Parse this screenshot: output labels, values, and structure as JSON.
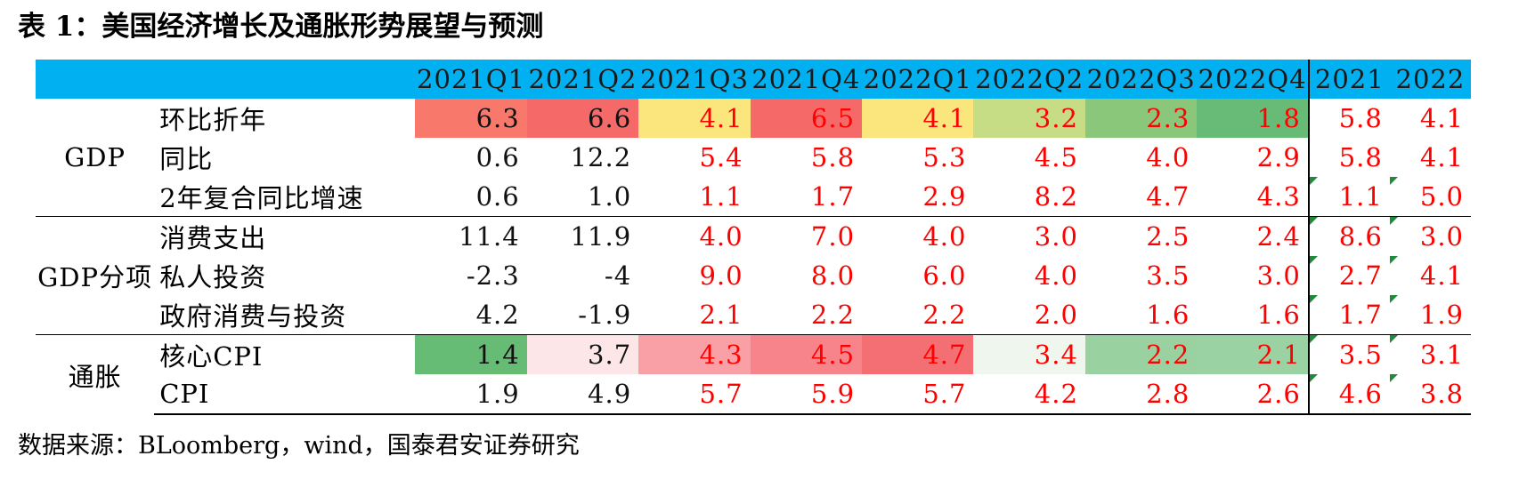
{
  "title": "表 1：美国经济增长及通胀形势展望与预测",
  "source": "数据来源：BLoomberg，wind，国泰君安证券研究",
  "columns": [
    "2021Q1",
    "2021Q2",
    "2021Q3",
    "2021Q4",
    "2022Q1",
    "2022Q2",
    "2022Q3",
    "2022Q4",
    "2021",
    "2022"
  ],
  "groups": [
    {
      "label": "GDP",
      "rows": [
        {
          "label": "环比折年",
          "values": [
            "6.3",
            "6.6",
            "4.1",
            "6.5",
            "4.1",
            "3.2",
            "2.3",
            "1.8",
            "5.8",
            "4.1"
          ],
          "bg": [
            "#f8786c",
            "#f56a68",
            "#fbe67e",
            "#f56a68",
            "#fbe67e",
            "#c6dc85",
            "#8bc77b",
            "#68bb77",
            null,
            null
          ]
        },
        {
          "label": "同比",
          "values": [
            "0.6",
            "12.2",
            "5.4",
            "5.8",
            "5.3",
            "4.5",
            "4.0",
            "2.9",
            "5.8",
            "4.1"
          ],
          "bg": [
            null,
            null,
            null,
            null,
            null,
            null,
            null,
            null,
            null,
            null
          ]
        },
        {
          "label": "2年复合同比增速",
          "values": [
            "0.6",
            "1.0",
            "1.1",
            "1.7",
            "2.9",
            "8.2",
            "4.7",
            "4.3",
            "1.1",
            "5.0"
          ],
          "bg": [
            null,
            null,
            null,
            null,
            null,
            null,
            null,
            null,
            null,
            null
          ]
        }
      ]
    },
    {
      "label": "GDP分项",
      "rows": [
        {
          "label": "消费支出",
          "values": [
            "11.4",
            "11.9",
            "4.0",
            "7.0",
            "4.0",
            "3.0",
            "2.5",
            "2.4",
            "8.6",
            "3.0"
          ],
          "bg": [
            null,
            null,
            null,
            null,
            null,
            null,
            null,
            null,
            null,
            null
          ]
        },
        {
          "label": "私人投资",
          "values": [
            "-2.3",
            "-4",
            "9.0",
            "8.0",
            "6.0",
            "4.0",
            "3.5",
            "3.0",
            "2.7",
            "4.1"
          ],
          "bg": [
            null,
            null,
            null,
            null,
            null,
            null,
            null,
            null,
            null,
            null
          ]
        },
        {
          "label": "政府消费与投资",
          "values": [
            "4.2",
            "-1.9",
            "2.1",
            "2.2",
            "2.2",
            "2.0",
            "1.6",
            "1.6",
            "1.7",
            "1.9"
          ],
          "bg": [
            null,
            null,
            null,
            null,
            null,
            null,
            null,
            null,
            null,
            null
          ]
        }
      ]
    },
    {
      "label": "通胀",
      "rows": [
        {
          "label": "核心CPI",
          "values": [
            "1.4",
            "3.7",
            "4.3",
            "4.5",
            "4.7",
            "3.4",
            "2.2",
            "2.1",
            "3.5",
            "3.1"
          ],
          "bg": [
            "#66bb75",
            "#fce6e8",
            "#f8a0a6",
            "#f6848a",
            "#f46f73",
            "#eef6ee",
            "#99d1a1",
            "#9bd2a3",
            null,
            null
          ]
        },
        {
          "label": "CPI",
          "values": [
            "1.9",
            "4.9",
            "5.7",
            "5.9",
            "5.7",
            "4.2",
            "2.8",
            "2.6",
            "4.6",
            "3.8"
          ],
          "bg": [
            null,
            null,
            null,
            null,
            null,
            null,
            null,
            null,
            null,
            null
          ]
        }
      ]
    }
  ],
  "colors": {
    "header_bg": "#00b0f0",
    "highlight_text": "#ff0000",
    "flag_marker": "#1e8a3a"
  }
}
